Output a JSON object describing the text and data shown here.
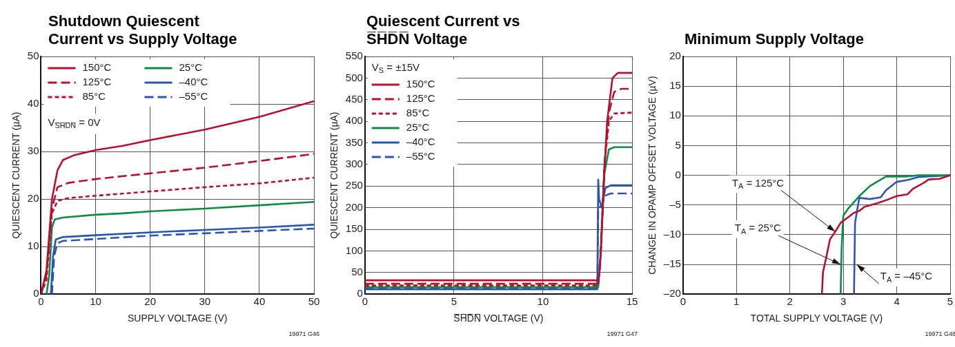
{
  "chart_data": [
    {
      "type": "line",
      "title": "Shutdown Quiescent Current vs Supply Voltage",
      "xlabel": "SUPPLY VOLTAGE (V)",
      "ylabel": "QUIESCENT CURRENT (µA)",
      "xlim": [
        0,
        50
      ],
      "ylim": [
        0,
        50
      ],
      "xticks": [
        0,
        10,
        20,
        30,
        40,
        50
      ],
      "yticks": [
        0,
        10,
        20,
        30,
        40,
        50
      ],
      "grid": true,
      "legend": "top left",
      "marker": "none",
      "annotations": [
        "V$_{S̅H̅D̅N̅}$ = 0V",
        "19971 G46"
      ],
      "series": [
        {
          "name": "150°C",
          "color": "#b5112e",
          "line_style": "solid",
          "x": [
            0,
            1,
            2,
            3,
            4,
            6,
            10,
            15,
            20,
            30,
            40,
            50
          ],
          "values": [
            0,
            5,
            20,
            26,
            28.2,
            29.2,
            30.3,
            31.2,
            32.4,
            34.6,
            37.3,
            40.6
          ]
        },
        {
          "name": "125°C",
          "color": "#b5112e",
          "line_style": "dashed",
          "x": [
            0,
            1,
            2,
            3,
            5,
            10,
            14,
            20,
            30,
            40,
            50
          ],
          "values": [
            0,
            4,
            18,
            22.5,
            23.4,
            24.2,
            24.7,
            25.4,
            26.6,
            28,
            29.5
          ]
        },
        {
          "name": "85°C",
          "color": "#b5112e",
          "line_style": "dotted",
          "x": [
            0,
            1,
            2,
            3,
            5,
            10,
            20,
            30,
            40,
            50
          ],
          "values": [
            0,
            3,
            17,
            19.6,
            20.2,
            20.7,
            21.6,
            22.5,
            23.3,
            24.5
          ]
        },
        {
          "name": "25°C",
          "color": "#0f8a47",
          "line_style": "solid",
          "x": [
            1,
            1.5,
            2,
            2.5,
            4,
            10,
            15,
            20,
            30,
            40,
            50
          ],
          "values": [
            0,
            4,
            14,
            15.7,
            16.1,
            16.7,
            17,
            17.4,
            18,
            18.7,
            19.4
          ]
        },
        {
          "name": "–40°C",
          "color": "#2a55b0",
          "line_style": "solid",
          "x": [
            1.8,
            2.2,
            2.7,
            4,
            10,
            20,
            30,
            40,
            50
          ],
          "values": [
            0,
            8,
            11.5,
            12,
            12.4,
            13,
            13.5,
            14,
            14.6
          ]
        },
        {
          "name": "–55°C",
          "color": "#2a55b0",
          "line_style": "dashed",
          "x": [
            2,
            2.4,
            3,
            4,
            10,
            20,
            30,
            40,
            50
          ],
          "values": [
            0,
            8,
            10.7,
            11.2,
            11.6,
            12.3,
            12.8,
            13.3,
            13.8
          ]
        }
      ]
    },
    {
      "type": "line",
      "title": "Quiescent Current vs S̅H̅D̅N̅ Voltage",
      "xlabel": "S̅H̅D̅N̅ VOLTAGE (V)",
      "ylabel": "QUIESCENT CURRENT (µA)",
      "xlim": [
        0,
        15
      ],
      "ylim": [
        0,
        550
      ],
      "xticks": [
        0,
        5,
        10,
        15
      ],
      "yticks": [
        0,
        50,
        100,
        150,
        200,
        250,
        300,
        350,
        400,
        450,
        500,
        550
      ],
      "grid": true,
      "legend": "top left",
      "legend_title": "V$_{S}$ = ±15V",
      "marker": "none",
      "annotations": [
        "19971 G47"
      ],
      "series": [
        {
          "name": "150°C",
          "color": "#b5112e",
          "line_style": "solid",
          "x": [
            0,
            13.1,
            13.2,
            13.4,
            13.6,
            13.9,
            14.2,
            15
          ],
          "values": [
            32,
            32,
            60,
            250,
            400,
            500,
            512,
            512
          ]
        },
        {
          "name": "125°C",
          "color": "#b5112e",
          "line_style": "dashed",
          "x": [
            0,
            13.1,
            13.25,
            13.45,
            13.7,
            14,
            14.4,
            15
          ],
          "values": [
            24,
            24,
            100,
            300,
            420,
            468,
            475,
            475
          ]
        },
        {
          "name": "85°C",
          "color": "#b5112e",
          "line_style": "dotted",
          "x": [
            0,
            13.1,
            13.25,
            13.45,
            13.7,
            14,
            15
          ],
          "values": [
            20,
            20,
            100,
            300,
            400,
            418,
            420
          ]
        },
        {
          "name": "25°C",
          "color": "#0f8a47",
          "line_style": "solid",
          "x": [
            0,
            13.1,
            13.25,
            13.45,
            13.7,
            14,
            15
          ],
          "values": [
            16,
            16,
            100,
            280,
            335,
            340,
            340
          ]
        },
        {
          "name": "–40°C",
          "color": "#2a55b0",
          "line_style": "solid",
          "x": [
            0,
            13.05,
            13.1,
            13.15,
            13.3,
            13.5,
            13.8,
            15
          ],
          "values": [
            11,
            11,
            265,
            220,
            200,
            245,
            252,
            252
          ]
        },
        {
          "name": "–55°C",
          "color": "#2a55b0",
          "line_style": "dashed",
          "x": [
            0,
            13.05,
            13.1,
            13.3,
            13.5,
            13.8,
            15
          ],
          "values": [
            13,
            13,
            200,
            205,
            228,
            233,
            233
          ]
        }
      ]
    },
    {
      "type": "line",
      "title": "Minimum Supply Voltage",
      "xlabel": "TOTAL SUPPLY VOLTAGE (V)",
      "ylabel": "CHANGE IN OPAMP OFFSET VOLTAGE (µV)",
      "xlim": [
        0,
        5
      ],
      "ylim": [
        -20,
        20
      ],
      "xticks": [
        0,
        1,
        2,
        3,
        4,
        5
      ],
      "yticks": [
        {
          "value": -20,
          "label": "–20"
        },
        {
          "value": -15,
          "label": "–15"
        },
        {
          "value": -10,
          "label": "–10"
        },
        {
          "value": -5,
          "label": "–5"
        },
        0,
        5,
        10,
        15,
        20
      ],
      "grid": true,
      "marker": "none",
      "line_style": "solid",
      "annotations": [
        {
          "text": "T$_{A}$ = 125°C",
          "x": 2.85,
          "y": -9.5
        },
        {
          "text": "T$_{A}$ = 25°C",
          "x": 2.95,
          "y": -15
        },
        {
          "text": "T$_{A}$ = –45°C",
          "x": 3.25,
          "y": -15
        },
        "19971 G48"
      ],
      "series": [
        {
          "color": "#b5112e",
          "x": [
            2.6,
            2.62,
            2.67,
            2.75,
            2.85,
            2.95,
            3.1,
            3.2,
            3.3,
            3.4,
            3.6,
            3.8,
            4,
            4.2,
            4.3,
            4.4,
            4.5,
            4.6,
            4.8,
            5
          ],
          "values": [
            -20,
            -16.3,
            -14.3,
            -10.8,
            -9.5,
            -8,
            -7,
            -6.3,
            -6,
            -5.3,
            -4.8,
            -4.2,
            -3.5,
            -3.2,
            -2.3,
            -1.8,
            -1.3,
            -0.7,
            -0.6,
            0
          ]
        },
        {
          "color": "#0f8a47",
          "x": [
            2.95,
            2.97,
            3,
            3.1,
            3.3,
            3.5,
            3.65,
            3.8,
            4.2,
            4.4,
            5
          ],
          "values": [
            -20,
            -12,
            -6.8,
            -5.5,
            -3.5,
            -1.8,
            -1,
            -0.2,
            -0.2,
            0,
            0
          ]
        },
        {
          "color": "#2a55b0",
          "x": [
            3.2,
            3.22,
            3.27,
            3.3,
            3.5,
            3.7,
            3.8,
            4,
            4.2,
            4.4,
            4.6,
            5
          ],
          "values": [
            -20,
            -8,
            -5.3,
            -3.8,
            -4,
            -3.7,
            -2.5,
            -1.1,
            -0.8,
            -0.3,
            -0.2,
            0
          ]
        }
      ]
    }
  ]
}
